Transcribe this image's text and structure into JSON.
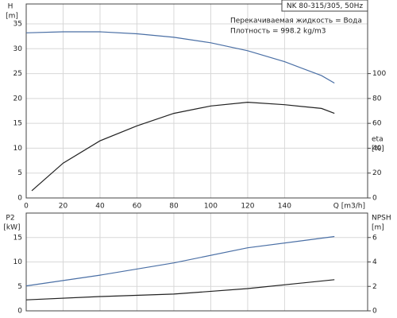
{
  "chart_data": [
    {
      "type": "line",
      "title": "NK 80-315/305, 50Hz",
      "annotations": [
        "Перекачиваемая жидкость = Вода",
        "Плотность = 998.2 kg/m3"
      ],
      "x_label": "Q [m3/h]",
      "y_label": "H",
      "y_units": "[m]",
      "y2_label": "eta",
      "y2_units": "[%]",
      "xlim": [
        0,
        185
      ],
      "xticks": [
        0,
        20,
        40,
        60,
        80,
        100,
        120,
        140
      ],
      "ylim": [
        0,
        39
      ],
      "yticks": [
        0,
        5,
        10,
        15,
        20,
        25,
        30,
        35
      ],
      "y2lim": [
        0,
        156
      ],
      "y2ticks": [
        0,
        20,
        40,
        60,
        80,
        100
      ],
      "grid": true,
      "series": [
        {
          "name": "H",
          "color": "#4a6fa5",
          "x": [
            0,
            20,
            40,
            60,
            80,
            100,
            120,
            140,
            160,
            167
          ],
          "values": [
            33.2,
            33.4,
            33.4,
            33.0,
            32.3,
            31.2,
            29.6,
            27.4,
            24.6,
            23.1
          ]
        },
        {
          "name": "eta",
          "color": "#222222",
          "axis": "y2",
          "x": [
            3,
            20,
            40,
            60,
            80,
            100,
            120,
            140,
            160,
            167
          ],
          "values": [
            5.8,
            28,
            46,
            58,
            68,
            74,
            77,
            75,
            72,
            68
          ]
        }
      ]
    },
    {
      "type": "line",
      "y_label": "P2",
      "y_units": "[kW]",
      "y2_label": "NPSH",
      "y2_units": "[m]",
      "xlim": [
        0,
        185
      ],
      "xticks": [
        0,
        20,
        40,
        60,
        80,
        100,
        120,
        140
      ],
      "xtick_labels": false,
      "ylim": [
        0,
        20
      ],
      "yticks": [
        0,
        5,
        10,
        15
      ],
      "y2lim": [
        0,
        8
      ],
      "y2ticks": [
        0,
        2,
        4,
        6
      ],
      "grid": true,
      "series": [
        {
          "name": "P2",
          "color": "#4a6fa5",
          "x": [
            0,
            40,
            80,
            120,
            167
          ],
          "values": [
            5.1,
            7.3,
            9.8,
            12.9,
            15.2
          ]
        },
        {
          "name": "NPSH",
          "color": "#222222",
          "axis": "y2",
          "x": [
            0,
            40,
            80,
            120,
            167
          ],
          "values": [
            0.9,
            1.17,
            1.37,
            1.82,
            2.55
          ]
        }
      ]
    }
  ]
}
